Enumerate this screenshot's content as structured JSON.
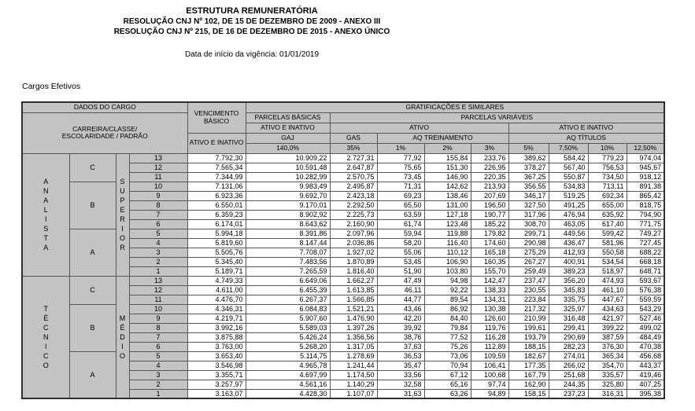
{
  "colors": {
    "header_fill": "#c3c3c3",
    "cell_fill": "#ffffff",
    "border": "#565656"
  },
  "header": {
    "title": "ESTRUTURA REMUNERATÓRIA",
    "subtitle1": "RESOLUÇÃO CNJ Nº 102, DE 15 DE DEZEMBRO DE 2009 - ANEXO III",
    "subtitle2": "RESOLUÇÃO CNJ Nº 215, DE 16 DE DEZEMBRO DE 2015 - ANEXO ÚNICO",
    "effective_date": "Data de início da vigência: 01/01/2019",
    "section_label": "Cargos Efetivos"
  },
  "table": {
    "headers": {
      "dados_do_cargo": "DADOS DO CARGO",
      "carreira": "CARREIRA/CLASSE/\nESCOLARIDADE / PADRÃO",
      "vencimento_basico": "VENCIMENTO BÁSICO",
      "ativo_e_inativo_venc": "ATIVO E INATIVO",
      "gratificacoes": "GRATIFICAÇÕES E SIMILARES",
      "parcelas_basicas": "PARCELAS BÁSICAS",
      "parcelas_variaveis": "PARCELAS VARIÁVEIS",
      "ativo_e_inativo_gaj": "ATIVO E INATIVO",
      "ativo": "ATIVO",
      "ativo_e_inativo_tit": "ATIVO E INATIVO",
      "gaj": "GAJ",
      "gas": "GAS",
      "aq_treinamento": "AQ TREINAMENTO",
      "aq_titulos": "AQ TÍTULOS",
      "pct": [
        "140,0%",
        "35%",
        "1%",
        "2%",
        "3%",
        "5%",
        "7,50%",
        "10%",
        "12,50%"
      ]
    },
    "groups": [
      {
        "career": "ANALISTA",
        "schooling": "SUPERIOR",
        "classes": [
          {
            "label": "C",
            "span": 3
          },
          {
            "label": "B",
            "span": 5
          },
          {
            "label": "A",
            "span": 5
          }
        ],
        "rows": [
          {
            "padrao": "13",
            "values": [
              "7.792,30",
              "10.909,22",
              "2.727,31",
              "77,92",
              "155,84",
              "233,76",
              "389,62",
              "584,42",
              "779,23",
              "974,04"
            ]
          },
          {
            "padrao": "12",
            "values": [
              "7.565,34",
              "10.591,48",
              "2.647,87",
              "75,65",
              "151,30",
              "226,95",
              "378,27",
              "567,40",
              "756,53",
              "945,67"
            ]
          },
          {
            "padrao": "11",
            "values": [
              "7.344,99",
              "10.282,99",
              "2.570,75",
              "73,45",
              "146,90",
              "220,35",
              "367,25",
              "550,87",
              "734,50",
              "918,12"
            ]
          },
          {
            "padrao": "10",
            "values": [
              "7.131,06",
              "9.983,49",
              "2.495,87",
              "71,31",
              "142,62",
              "213,93",
              "356,55",
              "534,83",
              "713,11",
              "891,38"
            ]
          },
          {
            "padrao": "9",
            "values": [
              "6.923,36",
              "9.692,70",
              "2.423,18",
              "69,23",
              "138,46",
              "207,69",
              "346,17",
              "519,25",
              "692,34",
              "865,42"
            ]
          },
          {
            "padrao": "8",
            "values": [
              "6.550,01",
              "9.170,01",
              "2.292,50",
              "65,50",
              "131,00",
              "196,50",
              "327,50",
              "491,25",
              "655,00",
              "818,75"
            ]
          },
          {
            "padrao": "7",
            "values": [
              "6.359,23",
              "8.902,92",
              "2.225,73",
              "63,59",
              "127,18",
              "190,77",
              "317,96",
              "476,94",
              "635,92",
              "794,90"
            ]
          },
          {
            "padrao": "6",
            "values": [
              "6.174,01",
              "8.643,62",
              "2.160,90",
              "61,74",
              "123,48",
              "185,22",
              "308,70",
              "463,05",
              "617,40",
              "771,75"
            ]
          },
          {
            "padrao": "5",
            "values": [
              "5.994,18",
              "8.391,86",
              "2.097,96",
              "59,94",
              "119,88",
              "179,82",
              "299,71",
              "449,56",
              "599,42",
              "749,27"
            ]
          },
          {
            "padrao": "4",
            "values": [
              "5.819,60",
              "8.147,44",
              "2.036,86",
              "58,20",
              "116,40",
              "174,60",
              "290,98",
              "436,47",
              "581,96",
              "727,45"
            ]
          },
          {
            "padrao": "3",
            "values": [
              "5.505,76",
              "7.708,07",
              "1.927,02",
              "55,06",
              "110,12",
              "165,18",
              "275,29",
              "412,93",
              "550,58",
              "688,22"
            ]
          },
          {
            "padrao": "2",
            "values": [
              "5.345,40",
              "7.483,56",
              "1.870,89",
              "53,45",
              "106,90",
              "160,35",
              "267,27",
              "400,91",
              "534,54",
              "668,18"
            ]
          },
          {
            "padrao": "1",
            "values": [
              "5.189,71",
              "7.265,59",
              "1.816,40",
              "51,90",
              "103,80",
              "155,70",
              "259,49",
              "389,23",
              "518,97",
              "648,71"
            ]
          }
        ]
      },
      {
        "career": "TÉCNICO",
        "schooling": "MÉDIO",
        "classes": [
          {
            "label": "C",
            "span": 3
          },
          {
            "label": "B",
            "span": 5
          },
          {
            "label": "A",
            "span": 5
          }
        ],
        "rows": [
          {
            "padrao": "13",
            "values": [
              "4.749,33",
              "6.649,06",
              "1.662,27",
              "47,49",
              "94,98",
              "142,47",
              "237,47",
              "356,20",
              "474,93",
              "593,67"
            ]
          },
          {
            "padrao": "12",
            "values": [
              "4.611,00",
              "6.455,39",
              "1.613,85",
              "46,11",
              "92,22",
              "138,33",
              "230,55",
              "345,83",
              "461,10",
              "576,38"
            ]
          },
          {
            "padrao": "11",
            "values": [
              "4.476,70",
              "6.267,37",
              "1.566,85",
              "44,77",
              "89,54",
              "134,31",
              "223,84",
              "335,75",
              "447,67",
              "559,59"
            ]
          },
          {
            "padrao": "10",
            "values": [
              "4.346,31",
              "6.084,83",
              "1.521,21",
              "43,46",
              "86,92",
              "130,38",
              "217,32",
              "325,97",
              "434,63",
              "543,29"
            ]
          },
          {
            "padrao": "9",
            "values": [
              "4.219,71",
              "5.907,60",
              "1.476,90",
              "42,20",
              "84,40",
              "126,60",
              "210,99",
              "316,48",
              "421,97",
              "527,46"
            ]
          },
          {
            "padrao": "8",
            "values": [
              "3.992,16",
              "5.589,03",
              "1.397,26",
              "39,92",
              "79,84",
              "119,76",
              "199,61",
              "299,41",
              "399,22",
              "499,02"
            ]
          },
          {
            "padrao": "7",
            "values": [
              "3.875,88",
              "5.426,24",
              "1.356,56",
              "38,76",
              "77,52",
              "116,28",
              "193,79",
              "290,69",
              "387,59",
              "484,49"
            ]
          },
          {
            "padrao": "6",
            "values": [
              "3.763,00",
              "5.268,20",
              "1.317,05",
              "37,63",
              "75,26",
              "112,89",
              "188,15",
              "282,23",
              "376,30",
              "470,38"
            ]
          },
          {
            "padrao": "5",
            "values": [
              "3.653,40",
              "5.114,75",
              "1.278,69",
              "36,53",
              "73,06",
              "109,59",
              "182,67",
              "274,01",
              "365,34",
              "456,68"
            ]
          },
          {
            "padrao": "4",
            "values": [
              "3.546,98",
              "4.965,78",
              "1.241,44",
              "35,47",
              "70,94",
              "106,41",
              "177,35",
              "266,02",
              "354,70",
              "443,37"
            ]
          },
          {
            "padrao": "3",
            "values": [
              "3.355,71",
              "4.697,99",
              "1.174,50",
              "33,56",
              "67,12",
              "100,68",
              "167,79",
              "251,68",
              "335,57",
              "419,46"
            ]
          },
          {
            "padrao": "2",
            "values": [
              "3.257,97",
              "4.561,16",
              "1.140,29",
              "32,58",
              "65,16",
              "97,74",
              "162,90",
              "244,35",
              "325,80",
              "407,25"
            ]
          },
          {
            "padrao": "1",
            "values": [
              "3.163,07",
              "4.428,30",
              "1.107,07",
              "31,63",
              "63,26",
              "94,89",
              "158,15",
              "237,23",
              "316,31",
              "395,38"
            ]
          }
        ]
      }
    ]
  }
}
